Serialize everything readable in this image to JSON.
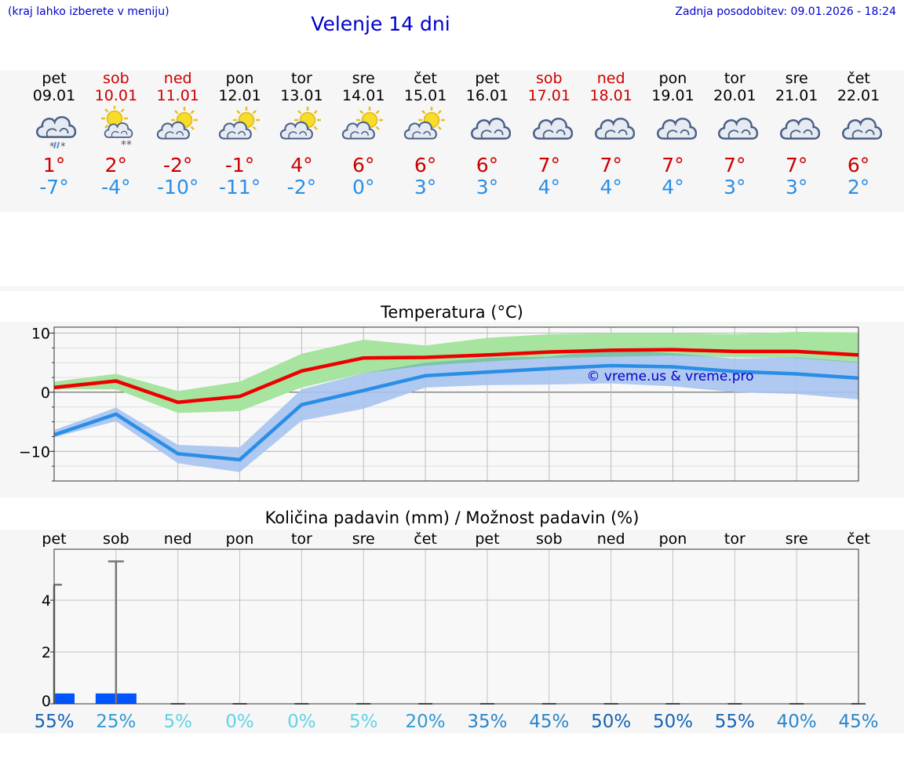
{
  "header": {
    "hint": "(kraj lahko izberete v meniju)",
    "title": "Velenje 14 dni",
    "updated": "Zadnja posodobitev: 09.01.2026 - 18:24"
  },
  "colors": {
    "title_blue": "#0000cc",
    "max_red": "#cc0000",
    "min_blue": "#2a8ee6",
    "max_band": "#a6e4a0",
    "min_band": "#a7c3f0",
    "overlap_band": "#7cc4a8",
    "precip_bar": "#0055ff"
  },
  "days": [
    {
      "name": "pet",
      "date": "09.01",
      "weekend": false,
      "icon": "cloud-snow-rain-icon",
      "tmax": "1°",
      "tmin": "-7°"
    },
    {
      "name": "sob",
      "date": "10.01",
      "weekend": true,
      "icon": "sun-cloud-snow-icon",
      "tmax": "2°",
      "tmin": "-4°"
    },
    {
      "name": "ned",
      "date": "11.01",
      "weekend": true,
      "icon": "sun-cloud-icon",
      "tmax": "-2°",
      "tmin": "-10°"
    },
    {
      "name": "pon",
      "date": "12.01",
      "weekend": false,
      "icon": "sun-cloud-icon",
      "tmax": "-1°",
      "tmin": "-11°"
    },
    {
      "name": "tor",
      "date": "13.01",
      "weekend": false,
      "icon": "sun-cloud-icon",
      "tmax": "4°",
      "tmin": "-2°"
    },
    {
      "name": "sre",
      "date": "14.01",
      "weekend": false,
      "icon": "sun-cloud-icon",
      "tmax": "6°",
      "tmin": "0°"
    },
    {
      "name": "čet",
      "date": "15.01",
      "weekend": false,
      "icon": "sun-cloud-icon",
      "tmax": "6°",
      "tmin": "3°"
    },
    {
      "name": "pet",
      "date": "16.01",
      "weekend": false,
      "icon": "cloud-icon",
      "tmax": "6°",
      "tmin": "3°"
    },
    {
      "name": "sob",
      "date": "17.01",
      "weekend": true,
      "icon": "cloud-icon",
      "tmax": "7°",
      "tmin": "4°"
    },
    {
      "name": "ned",
      "date": "18.01",
      "weekend": true,
      "icon": "cloud-icon",
      "tmax": "7°",
      "tmin": "4°"
    },
    {
      "name": "pon",
      "date": "19.01",
      "weekend": false,
      "icon": "cloud-icon",
      "tmax": "7°",
      "tmin": "4°"
    },
    {
      "name": "tor",
      "date": "20.01",
      "weekend": false,
      "icon": "cloud-icon",
      "tmax": "7°",
      "tmin": "3°"
    },
    {
      "name": "sre",
      "date": "21.01",
      "weekend": false,
      "icon": "cloud-icon",
      "tmax": "7°",
      "tmin": "3°"
    },
    {
      "name": "čet",
      "date": "22.01",
      "weekend": false,
      "icon": "cloud-icon",
      "tmax": "6°",
      "tmin": "2°"
    }
  ],
  "chart_data": [
    {
      "type": "line",
      "title": "Temperatura (°C)",
      "categories": [
        "pet",
        "sob",
        "ned",
        "pon",
        "tor",
        "sre",
        "čet",
        "pet",
        "sob",
        "ned",
        "pon",
        "tor",
        "sre",
        "čet"
      ],
      "x": [
        0,
        1,
        2,
        3,
        4,
        5,
        6,
        7,
        8,
        9,
        10,
        11,
        12,
        13
      ],
      "ylim": [
        -15,
        11
      ],
      "yticks": [
        10,
        0,
        -10
      ],
      "ytick_labels": [
        "10",
        "0",
        "−10"
      ],
      "grid": true,
      "watermark": "© vreme.us & vreme.pro",
      "series": [
        {
          "name": "max",
          "values": [
            0.8,
            1.9,
            -1.7,
            -0.7,
            3.6,
            5.8,
            5.9,
            6.3,
            6.8,
            7.1,
            7.2,
            6.9,
            6.9,
            6.3
          ],
          "band_low": [
            0.5,
            0.5,
            -3.5,
            -3.2,
            0.8,
            3.2,
            4.5,
            5.2,
            5.8,
            6.0,
            6.2,
            5.9,
            5.8,
            5.0
          ],
          "band_high": [
            1.8,
            3.1,
            0.2,
            1.8,
            6.5,
            8.9,
            7.9,
            9.2,
            9.8,
            10.0,
            10.0,
            9.8,
            10.2,
            10.1
          ]
        },
        {
          "name": "min",
          "values": [
            -7.2,
            -3.7,
            -10.4,
            -11.4,
            -2.1,
            0.3,
            2.8,
            3.4,
            4.0,
            4.5,
            4.3,
            3.5,
            3.1,
            2.4
          ],
          "band_low": [
            -7.6,
            -4.9,
            -12.0,
            -13.5,
            -4.8,
            -2.8,
            0.8,
            1.2,
            1.3,
            1.5,
            1.0,
            0.0,
            -0.3,
            -1.2
          ],
          "band_high": [
            -6.4,
            -2.6,
            -8.9,
            -9.3,
            0.5,
            3.2,
            5.0,
            5.8,
            6.0,
            7.3,
            6.6,
            5.7,
            5.9,
            5.1
          ]
        }
      ]
    },
    {
      "type": "bar",
      "title": "Količina padavin (mm) / Možnost padavin (%)",
      "categories": [
        "pet",
        "sob",
        "ned",
        "pon",
        "tor",
        "sre",
        "čet",
        "pet",
        "sob",
        "ned",
        "pon",
        "tor",
        "sre",
        "čet"
      ],
      "ylim": [
        0,
        6
      ],
      "yticks": [
        0,
        2,
        4
      ],
      "ytick_labels": [
        "0",
        "2",
        "4"
      ],
      "grid": true,
      "values": [
        0.4,
        0.4,
        0,
        0,
        0,
        0,
        0,
        0,
        0,
        0,
        0,
        0,
        0,
        0
      ],
      "error_high": [
        4.6,
        5.5,
        0,
        0,
        0,
        0,
        0,
        0,
        0,
        0,
        0,
        0,
        0,
        0
      ],
      "probability": [
        "55%",
        "25%",
        "5%",
        "0%",
        "0%",
        "5%",
        "20%",
        "35%",
        "45%",
        "50%",
        "50%",
        "55%",
        "40%",
        "45%"
      ],
      "probability_values": [
        55,
        25,
        5,
        0,
        0,
        5,
        20,
        35,
        45,
        50,
        50,
        55,
        40,
        45
      ]
    }
  ]
}
